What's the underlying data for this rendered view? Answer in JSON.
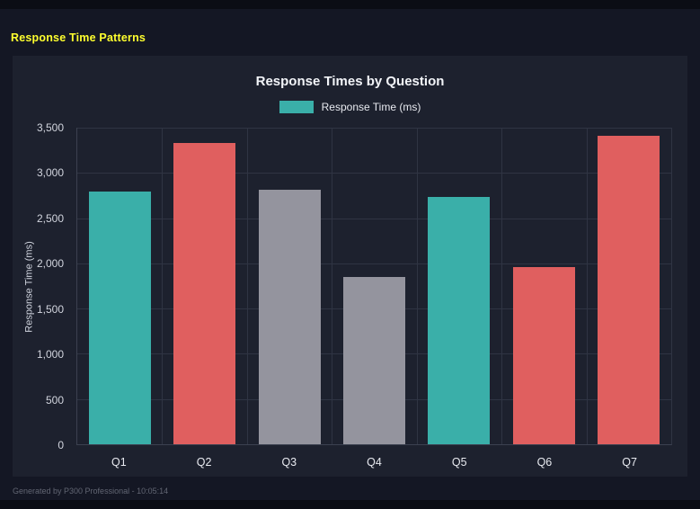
{
  "page": {
    "title": "Response Time Patterns",
    "footer": "Generated by P300 Professional - 10:05:14"
  },
  "chart_data": {
    "type": "bar",
    "title": "Response Times by Question",
    "legend": [
      "Response Time (ms)"
    ],
    "legend_position": "top",
    "ylabel": "Response Time (ms)",
    "xlabel": "",
    "categories": [
      "Q1",
      "Q2",
      "Q3",
      "Q4",
      "Q5",
      "Q6",
      "Q7"
    ],
    "values": [
      2790,
      3330,
      2810,
      1850,
      2730,
      1960,
      3410
    ],
    "bar_colors": [
      "#3aafa9",
      "#e05f5f",
      "#94949e",
      "#94949e",
      "#3aafa9",
      "#e05f5f",
      "#e05f5f"
    ],
    "ylim": [
      0,
      3500
    ],
    "yticks": [
      0,
      500,
      1000,
      1500,
      2000,
      2500,
      3000,
      3500
    ],
    "ytick_labels": [
      "0",
      "500",
      "1,000",
      "1,500",
      "2,000",
      "2,500",
      "3,000",
      "3,500"
    ],
    "grid": true
  },
  "colors": {
    "page_background": "#141724",
    "panel_background": "#1d212e",
    "accent_title": "#ffff2e",
    "teal": "#3aafa9",
    "red": "#e05f5f",
    "gray": "#94949e",
    "gridline": "#2f3443"
  }
}
